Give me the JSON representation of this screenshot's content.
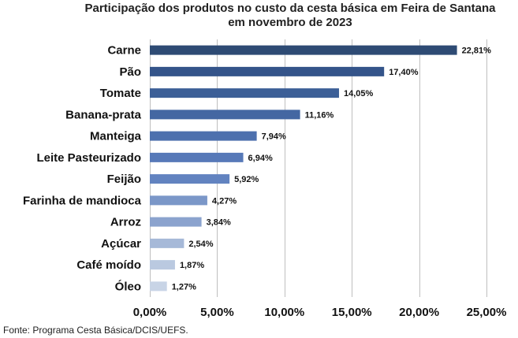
{
  "chart_data": {
    "type": "bar",
    "orientation": "horizontal",
    "title_lines": [
      "Participação dos produtos no custo da cesta básica em Feira de Santana",
      "em novembro de 2023"
    ],
    "categories": [
      "Carne",
      "Pão",
      "Tomate",
      "Banana-prata",
      "Manteiga",
      "Leite Pasteurizado",
      "Feijão",
      "Farinha de mandioca",
      "Arroz",
      "Açúcar",
      "Café moído",
      "Óleo"
    ],
    "values": [
      22.81,
      17.4,
      14.05,
      11.16,
      7.94,
      6.94,
      5.92,
      4.27,
      3.84,
      2.54,
      1.87,
      1.27
    ],
    "value_labels": [
      "22,81%",
      "17,40%",
      "14,05%",
      "11,16%",
      "7,94%",
      "6,94%",
      "5,92%",
      "4,27%",
      "3,84%",
      "2,54%",
      "1,87%",
      "1,27%"
    ],
    "bar_colors": [
      "#2e4b74",
      "#34548a",
      "#3c5f97",
      "#4467a2",
      "#4d70ae",
      "#5779b8",
      "#6283c0",
      "#7b97c8",
      "#8ba3ce",
      "#a6b9d8",
      "#bac9e0",
      "#c8d4e6"
    ],
    "xlim": [
      0,
      25
    ],
    "x_ticks": [
      0,
      5,
      10,
      15,
      20,
      25
    ],
    "x_tick_labels": [
      "0,00%",
      "5,00%",
      "10,00%",
      "15,00%",
      "20,00%",
      "25,00%"
    ],
    "grid": "vertical",
    "gridline_color": "#bfbfbf",
    "xlabel": "",
    "ylabel": ""
  },
  "source": "Fonte: Programa Cesta Básica/DCIS/UEFS."
}
